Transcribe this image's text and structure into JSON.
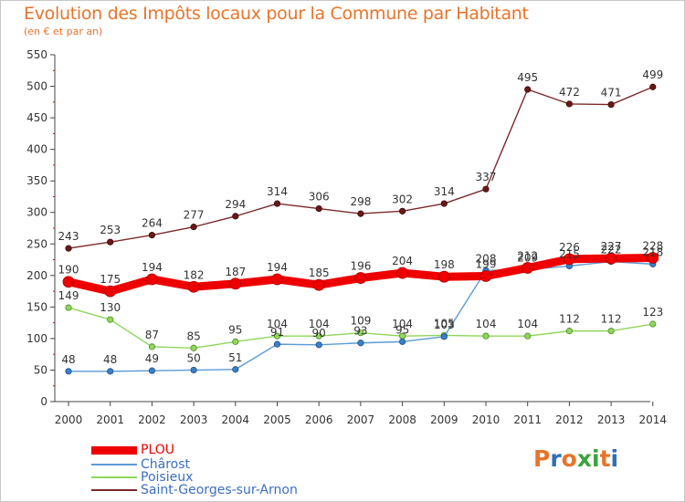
{
  "chart_data": {
    "type": "line",
    "title": "Evolution des Impôts locaux pour la Commune par Habitant",
    "subtitle": "(en € et par an)",
    "x": [
      "2000",
      "2001",
      "2002",
      "2003",
      "2004",
      "2005",
      "2006",
      "2007",
      "2008",
      "2009",
      "2010",
      "2011",
      "2012",
      "2013",
      "2014"
    ],
    "ylim": [
      0,
      550
    ],
    "yticks": [
      0,
      50,
      100,
      150,
      200,
      250,
      300,
      350,
      400,
      450,
      500,
      550
    ],
    "grid": false,
    "legend_position": "bottom-left",
    "series": [
      {
        "name": "PLOU",
        "color": "#ee0000",
        "values": [
          190,
          175,
          194,
          182,
          187,
          194,
          185,
          196,
          204,
          198,
          199,
          212,
          226,
          227,
          228
        ]
      },
      {
        "name": "Chârost",
        "color": "#5b9bd5",
        "values": [
          48,
          48,
          49,
          50,
          51,
          91,
          90,
          93,
          95,
          103,
          208,
          209,
          215,
          222,
          218
        ]
      },
      {
        "name": "Poisieux",
        "color": "#8fd65a",
        "values": [
          149,
          130,
          87,
          85,
          95,
          104,
          104,
          109,
          104,
          105,
          104,
          104,
          112,
          112,
          123
        ]
      },
      {
        "name": "Saint-Georges-sur-Arnon",
        "color": "#7a2a2a",
        "values": [
          243,
          253,
          264,
          277,
          294,
          314,
          306,
          298,
          302,
          314,
          337,
          495,
          472,
          471,
          499
        ]
      }
    ]
  },
  "logo": {
    "letters": [
      "P",
      "r",
      "o",
      "x",
      "i",
      "t",
      "i"
    ],
    "colors": [
      "#e8742a",
      "#2f6fb5",
      "#e8742a",
      "#3aa43a",
      "#3aa43a",
      "#e8742a",
      "#2f6fb5"
    ]
  }
}
